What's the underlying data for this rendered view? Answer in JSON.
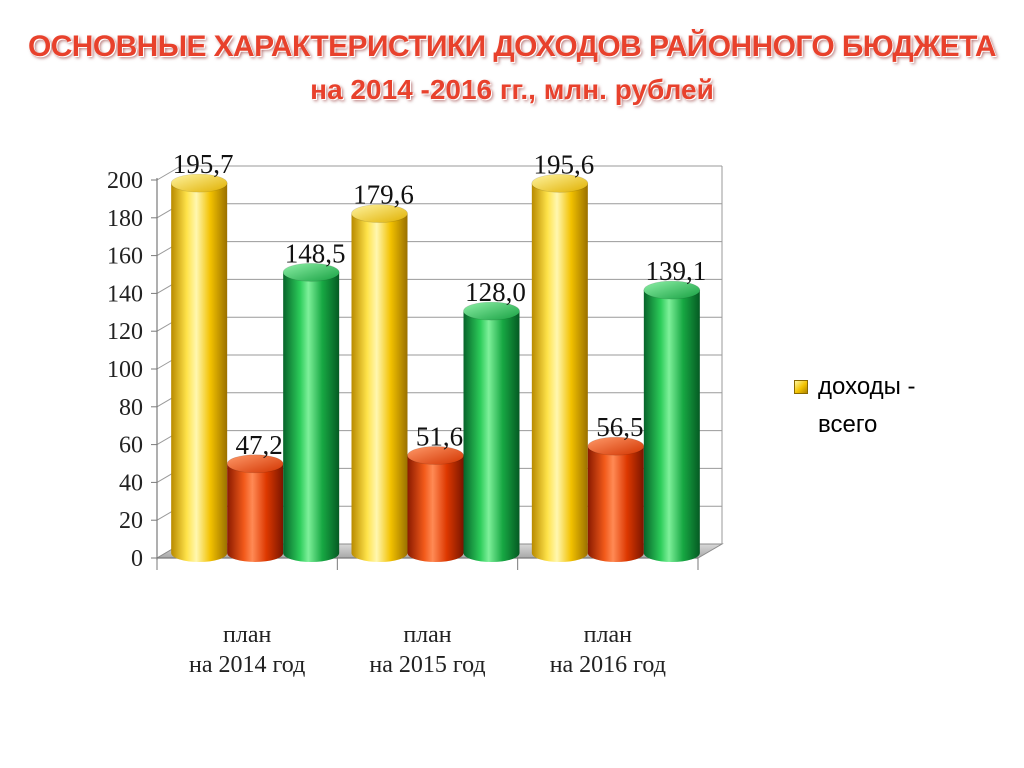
{
  "title": {
    "line1": "ОСНОВНЫЕ ХАРАКТЕРИСТИКИ ДОХОДОВ РАЙОННОГО БЮДЖЕТА",
    "line2": "на 2014 -2016 гг., млн. рублей"
  },
  "legend": {
    "items": [
      {
        "label": "доходы - всего",
        "color": "#f5c800"
      }
    ]
  },
  "chart_data": {
    "type": "bar",
    "categories": [
      {
        "line1": "план",
        "line2": "на 2014 год"
      },
      {
        "line1": "план",
        "line2": "на 2015 год"
      },
      {
        "line1": "план",
        "line2": "на 2016 год"
      }
    ],
    "series": [
      {
        "name": "доходы - всего",
        "color": "#f5c800",
        "values": [
          195.7,
          179.6,
          195.6
        ],
        "labels": [
          "195,7",
          "179,6",
          "195,6"
        ]
      },
      {
        "color": "#e03c00",
        "values": [
          47.2,
          51.6,
          56.5
        ],
        "labels": [
          "47,2",
          "51,6",
          "56,5"
        ]
      },
      {
        "color": "#1db045",
        "values": [
          148.5,
          128.0,
          139.1
        ],
        "labels": [
          "148,5",
          "128,0",
          "139,1"
        ]
      }
    ],
    "ylim": [
      0,
      200
    ],
    "yticks": [
      0,
      20,
      40,
      60,
      80,
      100,
      120,
      140,
      160,
      180,
      200
    ],
    "grid": true,
    "legend_position": "right",
    "style": "3d-cylinder"
  }
}
